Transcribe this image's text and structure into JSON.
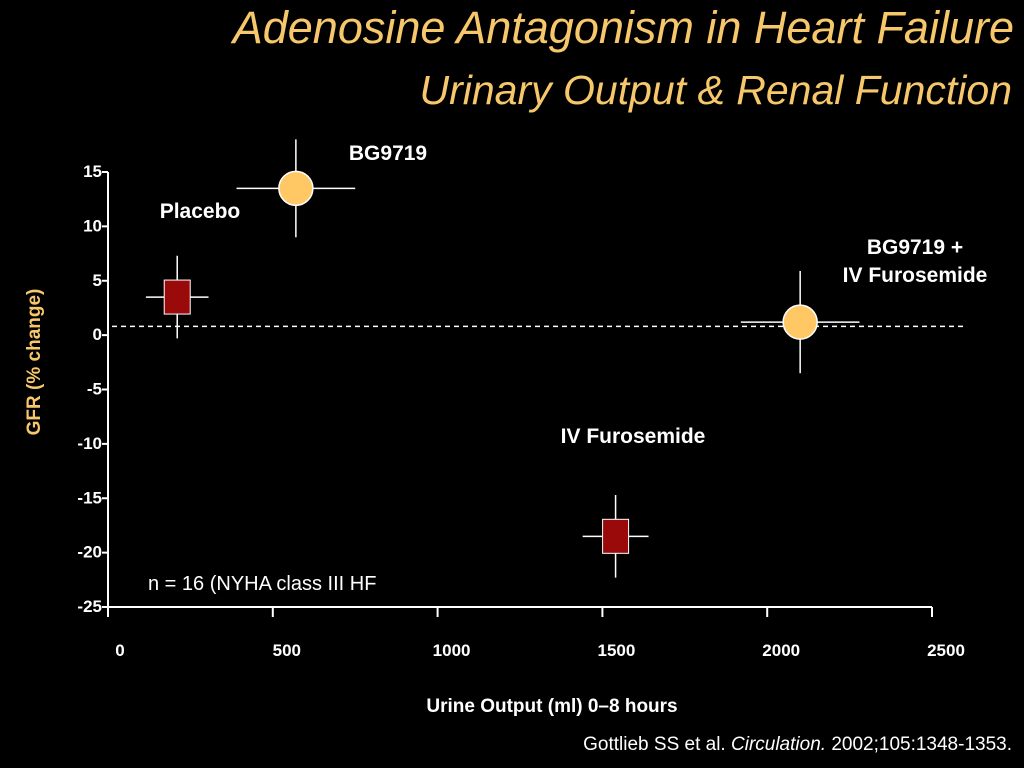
{
  "slide": {
    "title": "Adenosine Antagonism in Heart Failure",
    "subtitle": "Urinary Output & Renal Function",
    "citation_authors": "Gottlieb SS et al.",
    "citation_journal": "Circulation.",
    "citation_ref": "2002;105:1348-1353."
  },
  "colors": {
    "background": "#000000",
    "title": "#F7C86B",
    "axis_label": "#F7C86B",
    "text": "#FFFFFF",
    "circle_marker": "#FFC864",
    "square_marker": "#9B0A0A",
    "errorbar": "#FFFFFF"
  },
  "chart_data": {
    "type": "scatter",
    "title": "",
    "xlabel": "Urine Output (ml) 0–8 hours",
    "ylabel": "GFR (% change)",
    "xlim": [
      0,
      2500
    ],
    "ylim": [
      -25,
      15
    ],
    "xticks": [
      0,
      500,
      1000,
      1500,
      2000,
      2500
    ],
    "yticks": [
      15,
      10,
      5,
      0,
      -5,
      -10,
      -15,
      -20,
      -25
    ],
    "reference_line": {
      "y": 0.8,
      "style": "dashed"
    },
    "grid": false,
    "points": [
      {
        "label": "Placebo",
        "x": 210,
        "y": 3.5,
        "x_err": 95,
        "y_err": 3.8,
        "marker": "square"
      },
      {
        "label": "BG9719",
        "x": 570,
        "y": 13.5,
        "x_err": 180,
        "y_err": 4.5,
        "marker": "circle"
      },
      {
        "label": "IV Furosemide",
        "x": 1540,
        "y": -18.5,
        "x_err": 100,
        "y_err": 3.8,
        "marker": "square"
      },
      {
        "label": "BG9719 +\nIV Furosemide",
        "x": 2100,
        "y": 1.2,
        "x_err": 180,
        "y_err": 4.7,
        "marker": "circle"
      }
    ],
    "annotation": "n = 16 (NYHA class III HF"
  }
}
